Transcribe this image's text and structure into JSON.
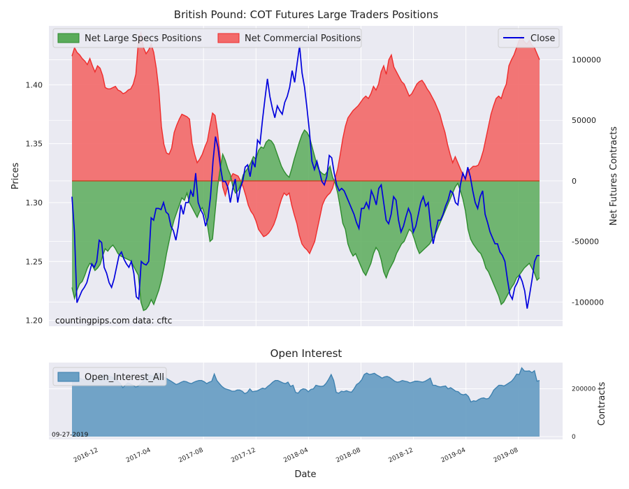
{
  "colors": {
    "panel_bg": "#eaeaf2",
    "grid": "#ffffff",
    "specs_fill": "#5aab5a",
    "specs_line": "#2e8b2e",
    "comm_fill": "#f26a6a",
    "comm_line": "#ee2c2c",
    "close_line": "#0000dd",
    "zero_line": "#c44422",
    "oi_fill": "#6a9fc4",
    "oi_line": "#3b7fae"
  },
  "chart_data": [
    {
      "type": "area",
      "title": "British Pound: COT Futures Large Traders Positions",
      "ylabel": "Prices",
      "y2label": "Net Futures Contracts",
      "ylim": [
        1.195,
        1.45
      ],
      "y2lim": [
        -120000,
        128000
      ],
      "yticks": [
        1.2,
        1.25,
        1.3,
        1.35,
        1.4
      ],
      "ytick_labels": [
        "1.20",
        "1.25",
        "1.30",
        "1.35",
        "1.40"
      ],
      "y2ticks": [
        -100000,
        -50000,
        0,
        50000,
        100000
      ],
      "y2tick_labels": [
        "-100000",
        "-50000",
        "0",
        "50000",
        "100000"
      ],
      "legend_left": [
        "Net Large Specs Positions",
        "Net Commercial Positions"
      ],
      "legend_right": [
        "Close"
      ],
      "annotation": "countingpips.com     data: cftc",
      "series": [
        {
          "name": "Close",
          "axis": "left",
          "values": [
            1.305,
            1.275,
            1.215,
            1.22,
            1.225,
            1.228,
            1.232,
            1.24,
            1.248,
            1.245,
            1.25,
            1.268,
            1.266,
            1.245,
            1.24,
            1.232,
            1.228,
            1.235,
            1.245,
            1.255,
            1.258,
            1.252,
            1.248,
            1.245,
            1.25,
            1.24,
            1.22,
            1.218,
            1.25,
            1.248,
            1.247,
            1.25,
            1.287,
            1.285,
            1.295,
            1.295,
            1.294,
            1.3,
            1.292,
            1.29,
            1.28,
            1.276,
            1.268,
            1.28,
            1.298,
            1.29,
            1.3,
            1.3,
            1.31,
            1.305,
            1.325,
            1.3,
            1.294,
            1.29,
            1.28,
            1.287,
            1.305,
            1.335,
            1.356,
            1.347,
            1.33,
            1.318,
            1.318,
            1.313,
            1.3,
            1.312,
            1.32,
            1.3,
            1.312,
            1.318,
            1.33,
            1.332,
            1.322,
            1.335,
            1.33,
            1.353,
            1.35,
            1.37,
            1.388,
            1.405,
            1.39,
            1.38,
            1.372,
            1.382,
            1.378,
            1.375,
            1.385,
            1.39,
            1.398,
            1.412,
            1.402,
            1.418,
            1.433,
            1.41,
            1.398,
            1.38,
            1.36,
            1.335,
            1.328,
            1.335,
            1.327,
            1.318,
            1.315,
            1.322,
            1.34,
            1.338,
            1.325,
            1.315,
            1.31,
            1.312,
            1.31,
            1.305,
            1.3,
            1.295,
            1.29,
            1.283,
            1.278,
            1.295,
            1.295,
            1.3,
            1.295,
            1.31,
            1.305,
            1.298,
            1.312,
            1.315,
            1.3,
            1.285,
            1.282,
            1.29,
            1.305,
            1.302,
            1.285,
            1.275,
            1.28,
            1.288,
            1.295,
            1.29,
            1.275,
            1.28,
            1.29,
            1.3,
            1.305,
            1.297,
            1.3,
            1.28,
            1.265,
            1.275,
            1.285,
            1.285,
            1.29,
            1.297,
            1.302,
            1.31,
            1.308,
            1.3,
            1.298,
            1.315,
            1.325,
            1.32,
            1.33,
            1.322,
            1.31,
            1.3,
            1.295,
            1.305,
            1.31,
            1.29,
            1.283,
            1.275,
            1.27,
            1.265,
            1.265,
            1.258,
            1.255,
            1.25,
            1.235,
            1.222,
            1.218,
            1.228,
            1.232,
            1.238,
            1.233,
            1.225,
            1.21,
            1.222,
            1.235,
            1.25,
            1.255,
            1.255
          ]
        },
        {
          "name": "Net Large Specs Positions",
          "axis": "right",
          "values": [
            -88000,
            -97000,
            -90000,
            -85000,
            -83000,
            -78000,
            -72000,
            -68000,
            -70000,
            -74000,
            -72000,
            -69000,
            -62000,
            -56000,
            -58000,
            -55000,
            -53000,
            -56000,
            -60000,
            -62000,
            -63000,
            -64000,
            -65000,
            -66000,
            -70000,
            -74000,
            -78000,
            -100000,
            -107000,
            -106000,
            -103000,
            -98000,
            -102000,
            -96000,
            -90000,
            -82000,
            -72000,
            -60000,
            -50000,
            -40000,
            -32000,
            -26000,
            -20000,
            -14000,
            -16000,
            -10000,
            -18000,
            -22000,
            -26000,
            -30000,
            -25000,
            -22000,
            -28000,
            -36000,
            -50000,
            -48000,
            -26000,
            -5000,
            10000,
            22000,
            17000,
            10000,
            5000,
            -5000,
            -10000,
            -8000,
            -3000,
            5000,
            8000,
            11000,
            15000,
            20000,
            18000,
            25000,
            28000,
            27000,
            32000,
            34000,
            33000,
            30000,
            24000,
            18000,
            12000,
            8000,
            5000,
            3000,
            10000,
            18000,
            25000,
            32000,
            38000,
            42000,
            40000,
            36000,
            28000,
            20000,
            12000,
            8000,
            6000,
            5000,
            8000,
            12000,
            3000,
            -2000,
            -10000,
            -22000,
            -35000,
            -40000,
            -52000,
            -58000,
            -62000,
            -60000,
            -65000,
            -70000,
            -75000,
            -78000,
            -73000,
            -68000,
            -60000,
            -55000,
            -58000,
            -65000,
            -75000,
            -80000,
            -74000,
            -70000,
            -66000,
            -60000,
            -56000,
            -52000,
            -50000,
            -45000,
            -40000,
            -42000,
            -48000,
            -55000,
            -60000,
            -58000,
            -56000,
            -54000,
            -52000,
            -48000,
            -45000,
            -40000,
            -35000,
            -30000,
            -25000,
            -20000,
            -15000,
            -10000,
            -5000,
            -2000,
            -8000,
            -15000,
            -25000,
            -40000,
            -48000,
            -52000,
            -55000,
            -58000,
            -60000,
            -65000,
            -72000,
            -75000,
            -80000,
            -85000,
            -90000,
            -95000,
            -102000,
            -100000,
            -96000,
            -92000,
            -88000,
            -85000,
            -80000,
            -78000,
            -75000,
            -72000,
            -70000,
            -68000,
            -72000,
            -76000,
            -82000,
            -80000
          ]
        },
        {
          "name": "Net Commercial Positions",
          "axis": "right",
          "values": [
            103000,
            110000,
            106000,
            104000,
            101000,
            99000,
            96000,
            101000,
            95000,
            90000,
            95000,
            93000,
            87000,
            77000,
            76000,
            76000,
            77000,
            78000,
            75000,
            74000,
            72000,
            73000,
            75000,
            76000,
            80000,
            88000,
            116000,
            122000,
            110000,
            105000,
            108000,
            113000,
            106000,
            93000,
            75000,
            45000,
            30000,
            23000,
            22000,
            27000,
            40000,
            46000,
            51000,
            55000,
            54000,
            53000,
            51000,
            31000,
            22000,
            15000,
            18000,
            22000,
            28000,
            33000,
            45000,
            56000,
            54000,
            40000,
            20000,
            -5000,
            -12000,
            -4000,
            2000,
            6000,
            5000,
            4000,
            0,
            -5000,
            -12000,
            -20000,
            -25000,
            -28000,
            -33000,
            -40000,
            -43000,
            -46000,
            -45000,
            -43000,
            -40000,
            -36000,
            -30000,
            -22000,
            -15000,
            -10000,
            -12000,
            -10000,
            -20000,
            -28000,
            -35000,
            -45000,
            -52000,
            -55000,
            -57000,
            -60000,
            -55000,
            -50000,
            -40000,
            -30000,
            -20000,
            -15000,
            -12000,
            -10000,
            -6000,
            2000,
            10000,
            22000,
            35000,
            45000,
            52000,
            55000,
            58000,
            60000,
            62000,
            65000,
            68000,
            70000,
            68000,
            72000,
            78000,
            75000,
            80000,
            90000,
            95000,
            88000,
            100000,
            104000,
            94000,
            90000,
            86000,
            82000,
            80000,
            75000,
            70000,
            72000,
            76000,
            80000,
            82000,
            83000,
            80000,
            76000,
            73000,
            69000,
            65000,
            60000,
            55000,
            47000,
            40000,
            30000,
            22000,
            15000,
            20000,
            15000,
            10000,
            5000,
            2000,
            8000,
            10000,
            12000,
            12000,
            13000,
            18000,
            25000,
            35000,
            45000,
            55000,
            62000,
            68000,
            70000,
            68000,
            75000,
            80000,
            95000,
            100000,
            104000,
            110000,
            116000,
            119000,
            115000,
            113000,
            116000,
            112000,
            110000,
            105000,
            100000
          ]
        }
      ]
    },
    {
      "type": "area",
      "title": "Open Interest",
      "xlabel": "Date",
      "ylabel": "Contracts",
      "ylim": [
        0,
        310000
      ],
      "yticks": [
        0,
        200000
      ],
      "ytick_labels": [
        "0",
        "200000"
      ],
      "legend": [
        "Open_Interest_All"
      ],
      "annotation": "09-27-2019",
      "x_tick_labels": [
        "2016-12",
        "2017-04",
        "2017-08",
        "2017-12",
        "2018-04",
        "2018-08",
        "2018-12",
        "2019-04",
        "2019-08"
      ],
      "series": [
        {
          "name": "Open_Interest_All",
          "values": [
            255000,
            250000,
            262000,
            245000,
            240000,
            238000,
            242000,
            245000,
            240000,
            235000,
            236000,
            245000,
            258000,
            260000,
            255000,
            252000,
            248000,
            240000,
            232000,
            222000,
            205000,
            215000,
            225000,
            220000,
            215000,
            208000,
            210000,
            222000,
            230000,
            262000,
            258000,
            255000,
            252000,
            262000,
            268000,
            255000,
            248000,
            245000,
            238000,
            232000,
            225000,
            218000,
            222000,
            228000,
            232000,
            230000,
            225000,
            222000,
            228000,
            232000,
            235000,
            235000,
            230000,
            222000,
            228000,
            232000,
            262000,
            235000,
            222000,
            210000,
            202000,
            198000,
            195000,
            190000,
            190000,
            195000,
            195000,
            190000,
            180000,
            185000,
            200000,
            188000,
            190000,
            192000,
            198000,
            203000,
            200000,
            210000,
            218000,
            228000,
            235000,
            235000,
            230000,
            225000,
            222000,
            228000,
            210000,
            215000,
            185000,
            182000,
            195000,
            200000,
            198000,
            188000,
            198000,
            200000,
            215000,
            212000,
            210000,
            212000,
            223000,
            240000,
            260000,
            235000,
            185000,
            182000,
            190000,
            188000,
            192000,
            188000,
            186000,
            200000,
            218000,
            225000,
            238000,
            260000,
            266000,
            260000,
            262000,
            265000,
            258000,
            252000,
            245000,
            250000,
            252000,
            248000,
            240000,
            232000,
            228000,
            230000,
            235000,
            232000,
            230000,
            225000,
            228000,
            232000,
            232000,
            230000,
            228000,
            232000,
            238000,
            245000,
            215000,
            215000,
            210000,
            208000,
            210000,
            212000,
            200000,
            205000,
            198000,
            190000,
            188000,
            178000,
            175000,
            178000,
            168000,
            145000,
            150000,
            148000,
            155000,
            160000,
            162000,
            158000,
            160000,
            175000,
            195000,
            205000,
            215000,
            215000,
            212000,
            218000,
            225000,
            232000,
            245000,
            262000,
            260000,
            288000,
            275000,
            274000,
            275000,
            268000,
            276000,
            232000,
            235000
          ]
        }
      ]
    }
  ]
}
